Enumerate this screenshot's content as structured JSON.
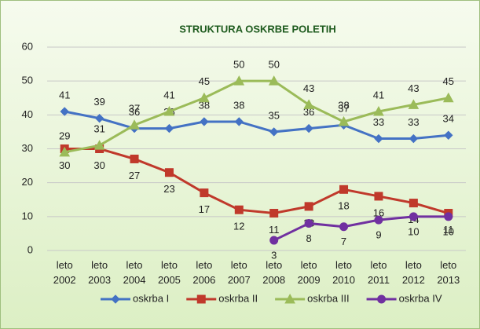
{
  "chart_data": {
    "type": "line",
    "title": "STRUKTURA OSKRBE POLETIH",
    "categories": [
      "leto 2002",
      "leto 2003",
      "leto 2004",
      "leto 2005",
      "leto 2006",
      "leto 2007",
      "leto 2008",
      "leto 2009",
      "leto 2010",
      "leto 2011",
      "leto 2012",
      "leto 2013"
    ],
    "series": [
      {
        "name": "oskrba I",
        "color": "#4472c4",
        "marker": "diamond",
        "values": [
          41,
          39,
          36,
          36,
          38,
          38,
          35,
          36,
          37,
          33,
          33,
          34
        ]
      },
      {
        "name": "oskrba II",
        "color": "#c0392b",
        "marker": "square",
        "values": [
          30,
          30,
          27,
          23,
          17,
          12,
          11,
          13,
          18,
          16,
          14,
          11
        ]
      },
      {
        "name": "oskrba III",
        "color": "#9bbb59",
        "marker": "triangle",
        "values": [
          29,
          31,
          37,
          41,
          45,
          50,
          50,
          43,
          38,
          41,
          43,
          45
        ]
      },
      {
        "name": "oskrba IV",
        "color": "#7030a0",
        "marker": "circle",
        "values": [
          null,
          null,
          null,
          null,
          null,
          null,
          3,
          8,
          7,
          9,
          10,
          10
        ]
      }
    ],
    "ylim": [
      0,
      60
    ],
    "yticks": [
      0,
      10,
      20,
      30,
      40,
      50,
      60
    ],
    "grid": true,
    "legend": "bottom"
  }
}
